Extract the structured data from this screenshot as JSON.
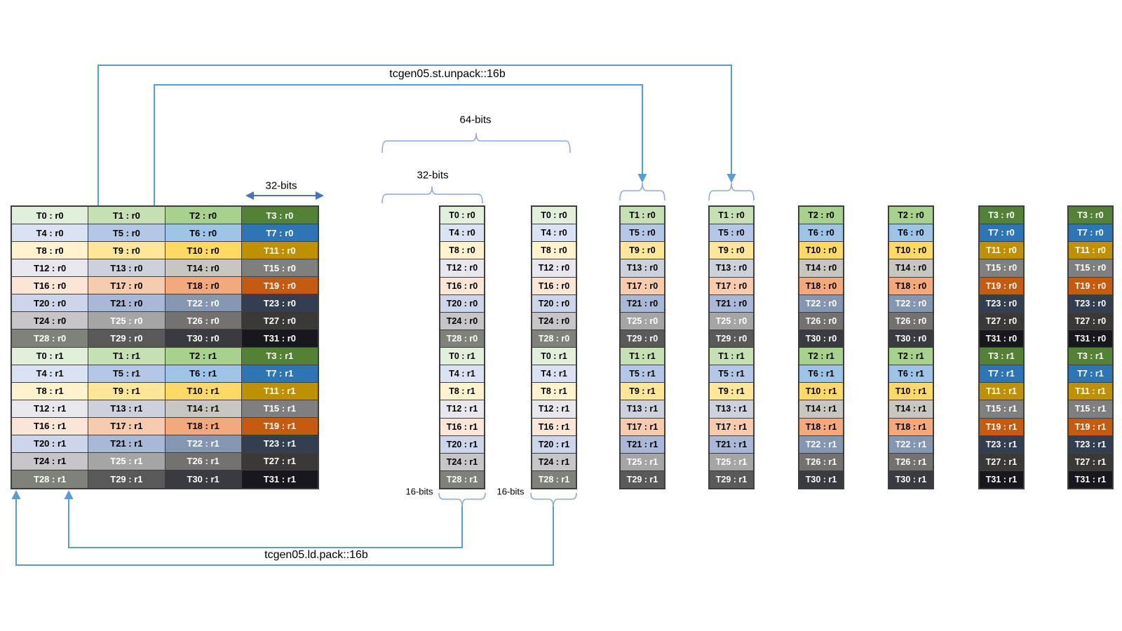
{
  "diagram": {
    "title_top": "tcgen05.st.unpack::16b",
    "title_bottom": "tcgen05.ld.pack::16b",
    "annotations": {
      "bits_64": "64-bits",
      "bits_32_table": "32-bits",
      "bits_32_column": "32-bits",
      "bits_16_col1": "16-bits",
      "bits_16_col2": "16-bits"
    },
    "colors": {
      "connector_blue": "#5b9bd5",
      "brace_blue": "#8faadc",
      "arrow32_blue": "#4472c4",
      "table_border": "#3f3f3f",
      "background": "#ffffff"
    },
    "palette": {
      "groups": [
        {
          "name": "green",
          "bg": [
            "#e2efda",
            "#c6e0b4",
            "#a9d18e",
            "#538135"
          ],
          "fg": [
            "#000000",
            "#000000",
            "#000000",
            "#ffffff"
          ]
        },
        {
          "name": "blue",
          "bg": [
            "#dae3f3",
            "#b4c7e7",
            "#9dc3e6",
            "#2e75b6"
          ],
          "fg": [
            "#000000",
            "#000000",
            "#000000",
            "#ffffff"
          ]
        },
        {
          "name": "yellow",
          "bg": [
            "#fff2cc",
            "#ffe699",
            "#ffd966",
            "#bf9000"
          ],
          "fg": [
            "#000000",
            "#000000",
            "#000000",
            "#ffffff"
          ]
        },
        {
          "name": "gray-lav",
          "bg": [
            "#e8e7ed",
            "#ccd1dc",
            "#c9c6c2",
            "#7f7f7f"
          ],
          "fg": [
            "#000000",
            "#000000",
            "#000000",
            "#ffffff"
          ]
        },
        {
          "name": "peach",
          "bg": [
            "#fbe5d6",
            "#f7cbad",
            "#f4a97c",
            "#c55a11"
          ],
          "fg": [
            "#000000",
            "#000000",
            "#000000",
            "#ffffff"
          ]
        },
        {
          "name": "periwinkle",
          "bg": [
            "#ccd5ea",
            "#aab8d8",
            "#8496b0",
            "#333f50"
          ],
          "fg": [
            "#000000",
            "#000000",
            "#ffffff",
            "#ffffff"
          ]
        },
        {
          "name": "gray",
          "bg": [
            "#c7c5c7",
            "#a5a5a5",
            "#767171",
            "#3b3838"
          ],
          "fg": [
            "#000000",
            "#ffffff",
            "#ffffff",
            "#ffffff"
          ]
        },
        {
          "name": "dark",
          "bg": [
            "#7f827a",
            "#595959",
            "#3a3a41",
            "#17171d"
          ],
          "fg": [
            "#ffffff",
            "#ffffff",
            "#ffffff",
            "#ffffff"
          ]
        }
      ]
    },
    "register_matrix": {
      "rows": [
        {
          "group": 0,
          "cells": [
            "T0 : r0",
            "T1 : r0",
            "T2 : r0",
            "T3 : r0"
          ]
        },
        {
          "group": 1,
          "cells": [
            "T4 : r0",
            "T5 : r0",
            "T6 : r0",
            "T7 : r0"
          ]
        },
        {
          "group": 2,
          "cells": [
            "T8 : r0",
            "T9 : r0",
            "T10 : r0",
            "T11 : r0"
          ]
        },
        {
          "group": 3,
          "cells": [
            "T12 : r0",
            "T13 : r0",
            "T14 : r0",
            "T15 : r0"
          ]
        },
        {
          "group": 4,
          "cells": [
            "T16 : r0",
            "T17 : r0",
            "T18 : r0",
            "T19 : r0"
          ]
        },
        {
          "group": 5,
          "cells": [
            "T20 : r0",
            "T21 : r0",
            "T22 : r0",
            "T23 : r0"
          ]
        },
        {
          "group": 6,
          "cells": [
            "T24 : r0",
            "T25 : r0",
            "T26 : r0",
            "T27 : r0"
          ]
        },
        {
          "group": 7,
          "cells": [
            "T28 : r0",
            "T29 : r0",
            "T30 : r0",
            "T31 : r0"
          ]
        },
        {
          "group": 0,
          "cells": [
            "T0 : r1",
            "T1 : r1",
            "T2 : r1",
            "T3 : r1"
          ]
        },
        {
          "group": 1,
          "cells": [
            "T4 : r1",
            "T5 : r1",
            "T6 : r1",
            "T7 : r1"
          ]
        },
        {
          "group": 2,
          "cells": [
            "T8 : r1",
            "T9 : r1",
            "T10 : r1",
            "T11 : r1"
          ]
        },
        {
          "group": 3,
          "cells": [
            "T12 : r1",
            "T13 : r1",
            "T14 : r1",
            "T15 : r1"
          ]
        },
        {
          "group": 4,
          "cells": [
            "T16 : r1",
            "T17 : r1",
            "T18 : r1",
            "T19 : r1"
          ]
        },
        {
          "group": 5,
          "cells": [
            "T20 : r1",
            "T21 : r1",
            "T22 : r1",
            "T23 : r1"
          ]
        },
        {
          "group": 6,
          "cells": [
            "T24 : r1",
            "T25 : r1",
            "T26 : r1",
            "T27 : r1"
          ]
        },
        {
          "group": 7,
          "cells": [
            "T28 : r1",
            "T29 : r1",
            "T30 : r1",
            "T31 : r1"
          ]
        }
      ]
    },
    "vector_columns": {
      "source_cols": [
        0,
        0,
        1,
        1,
        2,
        2,
        3,
        3
      ]
    }
  }
}
